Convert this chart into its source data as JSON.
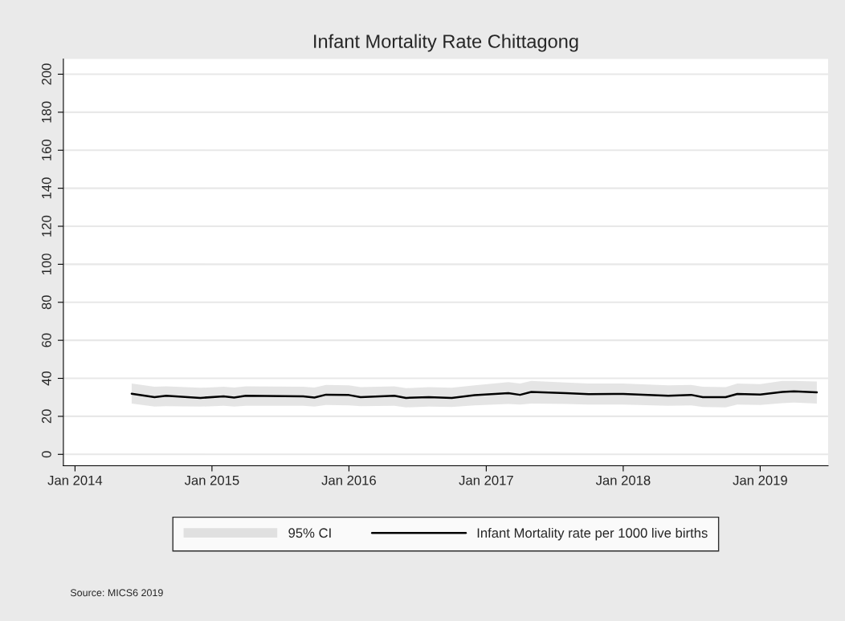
{
  "chart_data": {
    "type": "line",
    "title": "Infant Mortality Rate Chittagong",
    "x": [
      "2014-06",
      "2014-08",
      "2014-09",
      "2014-12",
      "2015-02",
      "2015-03",
      "2015-04",
      "2015-09",
      "2015-10",
      "2015-11",
      "2016-01",
      "2016-02",
      "2016-05",
      "2016-06",
      "2016-08",
      "2016-10",
      "2016-12",
      "2017-03",
      "2017-04",
      "2017-05",
      "2017-08",
      "2017-10",
      "2018-01",
      "2018-05",
      "2018-07",
      "2018-08",
      "2018-10",
      "2018-11",
      "2019-01",
      "2019-03",
      "2019-04",
      "2019-06"
    ],
    "series": [
      {
        "name": "Infant Mortality rate per 1000 live births",
        "color": "#000000",
        "lower": [
          26.7,
          25.1,
          25.3,
          25.1,
          25.6,
          25.1,
          25.6,
          25.6,
          25.1,
          26.0,
          25.8,
          25.3,
          25.6,
          24.7,
          25.1,
          24.9,
          25.8,
          26.5,
          26.2,
          26.7,
          26.5,
          26.2,
          26.2,
          25.6,
          25.8,
          24.9,
          24.7,
          26.2,
          26.0,
          26.9,
          27.2,
          26.7
        ],
        "upper": [
          37.3,
          35.6,
          35.8,
          35.0,
          35.6,
          35.2,
          35.8,
          35.6,
          35.2,
          36.5,
          36.3,
          35.4,
          35.8,
          34.8,
          35.4,
          35.0,
          36.3,
          38.0,
          37.3,
          38.6,
          37.8,
          37.3,
          37.3,
          36.3,
          36.5,
          35.6,
          35.4,
          37.3,
          37.0,
          38.6,
          38.6,
          38.3
        ],
        "values": [
          31.9,
          30.1,
          30.8,
          29.7,
          30.5,
          29.9,
          30.8,
          30.5,
          29.9,
          31.4,
          31.2,
          30.1,
          30.8,
          29.7,
          30.1,
          29.7,
          31.1,
          32.2,
          31.3,
          32.8,
          32.2,
          31.7,
          31.8,
          30.8,
          31.3,
          30.1,
          30.1,
          31.8,
          31.5,
          32.8,
          33.1,
          32.6
        ]
      }
    ],
    "xlim": [
      "2013-12-01",
      "2019-07-01"
    ],
    "xticks": [
      {
        "value": "2014-01-01",
        "label": "Jan 2014"
      },
      {
        "value": "2015-01-01",
        "label": "Jan 2015"
      },
      {
        "value": "2016-01-01",
        "label": "Jan 2016"
      },
      {
        "value": "2017-01-01",
        "label": "Jan 2017"
      },
      {
        "value": "2018-01-01",
        "label": "Jan 2018"
      },
      {
        "value": "2019-01-01",
        "label": "Jan 2019"
      }
    ],
    "ylim": [
      -6,
      208
    ],
    "yticks": [
      0,
      20,
      40,
      60,
      80,
      100,
      120,
      140,
      160,
      180,
      200
    ],
    "grid": "y",
    "legend": "bottom",
    "line_style": "solid",
    "annotations": [
      "95% CI",
      "Source: MICS6 2019"
    ]
  }
}
